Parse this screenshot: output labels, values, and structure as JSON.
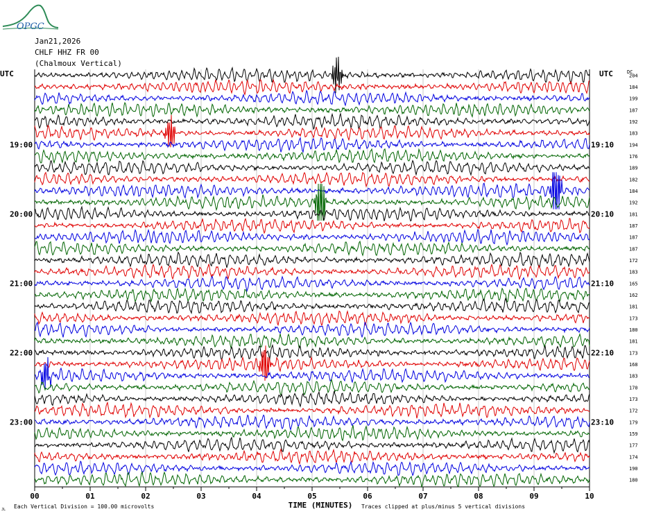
{
  "logo": {
    "text": "OPGC"
  },
  "header": {
    "date": "Jan21,2026",
    "station": "CHLF HHZ FR 00",
    "location": "(Chalmoux Vertical)"
  },
  "chart_data": {
    "type": "line",
    "subtype": "helicorder",
    "left_axis_label": "UTC",
    "right_axis_label": "UTC",
    "dc_label": "DC",
    "xlabel": "TIME (MINUTES)",
    "xlim": [
      0,
      10
    ],
    "x_ticks": [
      "00",
      "01",
      "02",
      "03",
      "04",
      "05",
      "06",
      "07",
      "08",
      "09",
      "10"
    ],
    "trace_colors": [
      "#000000",
      "#e00000",
      "#0000e0",
      "#006400"
    ],
    "traces_per_hour": 6,
    "left_hour_labels": [
      {
        "trace": 6,
        "text": "19:00"
      },
      {
        "trace": 12,
        "text": "20:00"
      },
      {
        "trace": 18,
        "text": "21:00"
      },
      {
        "trace": 24,
        "text": "22:00"
      },
      {
        "trace": 30,
        "text": "23:00"
      }
    ],
    "right_hour_labels": [
      {
        "trace": 6,
        "text": "19:10"
      },
      {
        "trace": 12,
        "text": "20:10"
      },
      {
        "trace": 18,
        "text": "21:10"
      },
      {
        "trace": 24,
        "text": "22:10"
      },
      {
        "trace": 30,
        "text": "23:10"
      }
    ],
    "dc_offsets": [
      204,
      184,
      199,
      187,
      192,
      183,
      194,
      176,
      189,
      182,
      184,
      192,
      181,
      187,
      187,
      187,
      172,
      183,
      165,
      162,
      181,
      173,
      180,
      181,
      173,
      168,
      183,
      170,
      173,
      172,
      179,
      159,
      177,
      174,
      190,
      180
    ],
    "events": [
      {
        "trace": 11,
        "minute": 5.15,
        "amplitude": 1.8
      },
      {
        "trace": 10,
        "minute": 9.4,
        "amplitude": 2.0
      },
      {
        "trace": 5,
        "minute": 2.45,
        "amplitude": 0.9
      },
      {
        "trace": 25,
        "minute": 4.15,
        "amplitude": 1.0
      },
      {
        "trace": 26,
        "minute": 0.2,
        "amplitude": 0.8
      },
      {
        "trace": 0,
        "minute": 5.45,
        "amplitude": 1.0
      }
    ],
    "footer_left": "Each Vertical Division =  100.00 microvolts",
    "footer_right": "Traces clipped at plus/minus 5 vertical divisions",
    "footer_mark": "JL"
  }
}
